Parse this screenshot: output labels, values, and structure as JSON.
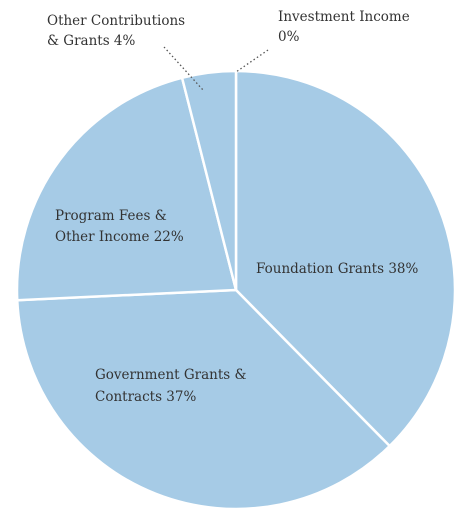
{
  "chart_data": {
    "type": "pie",
    "slice_color": "#a6cbe6",
    "border_color": "#ffffff",
    "text_color": "#333333",
    "slices": [
      {
        "name": "Foundation Grants",
        "value": 38,
        "label_lines": [
          "Foundation Grants 38%"
        ]
      },
      {
        "name": "Government Grants & Contracts",
        "value": 37,
        "label_lines": [
          "Government Grants &",
          "Contracts 37%"
        ]
      },
      {
        "name": "Program Fees & Other Income",
        "value": 22,
        "label_lines": [
          "Program Fees &",
          "Other Income 22%"
        ]
      },
      {
        "name": "Other Contributions & Grants",
        "value": 4,
        "label_lines": [
          "Other Contributions",
          "& Grants 4%"
        ]
      },
      {
        "name": "Investment Income",
        "value": 0,
        "label_lines": [
          "Investment Income",
          "0%"
        ]
      }
    ]
  }
}
